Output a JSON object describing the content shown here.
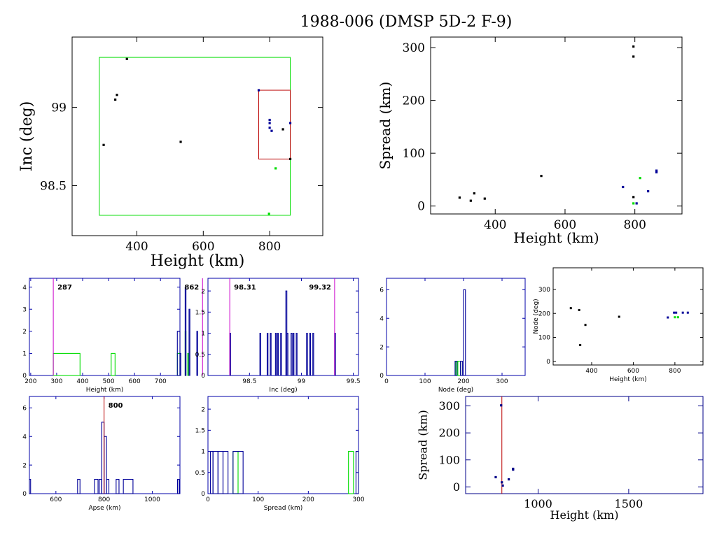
{
  "title": "1988-006 (DMSP 5D-2 F-9)",
  "colors": {
    "black": "#000000",
    "green": "#00dd00",
    "red": "#bb0000",
    "blue": "#000099",
    "magenta": "#cc00cc",
    "navy": "#000088"
  },
  "chart_data": [
    {
      "id": "inc-vs-height",
      "type": "scatter",
      "xlabel": "Height (km)",
      "ylabel": "Inc (deg)",
      "xlim": [
        205,
        960
      ],
      "ylim": [
        98.18,
        99.45
      ],
      "xticks": [
        400,
        600,
        800
      ],
      "yticks": [
        98.5,
        99
      ],
      "boxes": [
        {
          "color": "green",
          "x": [
            287,
            862
          ],
          "y": [
            98.31,
            99.32
          ]
        },
        {
          "color": "red",
          "x": [
            767,
            862
          ],
          "y": [
            98.67,
            99.11
          ]
        }
      ],
      "points": [
        {
          "x": 370,
          "y": 99.31,
          "color": "black"
        },
        {
          "x": 340,
          "y": 99.08,
          "color": "black"
        },
        {
          "x": 335,
          "y": 99.05,
          "color": "black"
        },
        {
          "x": 300,
          "y": 98.76,
          "color": "black"
        },
        {
          "x": 532,
          "y": 98.78,
          "color": "black"
        },
        {
          "x": 767,
          "y": 99.11,
          "color": "blue"
        },
        {
          "x": 800,
          "y": 98.92,
          "color": "blue"
        },
        {
          "x": 800,
          "y": 98.9,
          "color": "blue"
        },
        {
          "x": 800,
          "y": 98.87,
          "color": "blue"
        },
        {
          "x": 806,
          "y": 98.85,
          "color": "blue"
        },
        {
          "x": 840,
          "y": 98.86,
          "color": "black"
        },
        {
          "x": 862,
          "y": 98.9,
          "color": "blue"
        },
        {
          "x": 862,
          "y": 98.67,
          "color": "black"
        },
        {
          "x": 818,
          "y": 98.61,
          "color": "green"
        },
        {
          "x": 798,
          "y": 98.32,
          "color": "green"
        }
      ]
    },
    {
      "id": "spread-vs-height",
      "type": "scatter",
      "xlabel": "Height (km)",
      "ylabel": "Spread (km)",
      "xlim": [
        215,
        935
      ],
      "ylim": [
        -15,
        320
      ],
      "xticks": [
        400,
        600,
        800
      ],
      "yticks": [
        0,
        100,
        200,
        300
      ],
      "points": [
        {
          "x": 298,
          "y": 16,
          "color": "black"
        },
        {
          "x": 330,
          "y": 10,
          "color": "black"
        },
        {
          "x": 340,
          "y": 24,
          "color": "black"
        },
        {
          "x": 370,
          "y": 14,
          "color": "black"
        },
        {
          "x": 532,
          "y": 57,
          "color": "black"
        },
        {
          "x": 796,
          "y": 302,
          "color": "black"
        },
        {
          "x": 796,
          "y": 283,
          "color": "black"
        },
        {
          "x": 766,
          "y": 36,
          "color": "blue"
        },
        {
          "x": 796,
          "y": 17,
          "color": "black"
        },
        {
          "x": 796,
          "y": 5,
          "color": "green"
        },
        {
          "x": 805,
          "y": 5,
          "color": "blue"
        },
        {
          "x": 815,
          "y": 53,
          "color": "green"
        },
        {
          "x": 838,
          "y": 28,
          "color": "blue"
        },
        {
          "x": 862,
          "y": 64,
          "color": "blue"
        },
        {
          "x": 862,
          "y": 67,
          "color": "blue"
        }
      ]
    },
    {
      "id": "height-hist",
      "type": "histogram",
      "xlabel": "Height (km)",
      "xlim": [
        195,
        775
      ],
      "ylim": [
        0,
        4.4
      ],
      "xticks": [
        200,
        300,
        400,
        500,
        600,
        700
      ],
      "xticklabels": [
        "200",
        "300",
        "400",
        "500",
        "600",
        "700"
      ],
      "yticks": [
        0,
        1,
        2,
        3,
        4
      ],
      "markers": [
        {
          "x": 287,
          "label": "287"
        },
        {
          "x": 862,
          "label": "862"
        }
      ],
      "series": [
        {
          "color": "green",
          "bars": [
            [
              287,
              390,
              1
            ],
            [
              510,
              525,
              1
            ],
            [
              765,
              795,
              1
            ],
            [
              795,
              805,
              2
            ],
            [
              805,
              830,
              1
            ]
          ]
        },
        {
          "color": "blue",
          "bars": [
            [
              765,
              775,
              2
            ],
            [
              775,
              795,
              1
            ],
            [
              795,
              810,
              4
            ],
            [
              810,
              840,
              3
            ],
            [
              840,
              862,
              2
            ]
          ]
        }
      ]
    },
    {
      "id": "inc-hist",
      "type": "histogram",
      "xlabel": "Inc (deg)",
      "xlim": [
        98.1,
        99.55
      ],
      "ylim": [
        0,
        2.3
      ],
      "xticks": [
        98.5,
        99,
        99.5
      ],
      "xticklabels": [
        "98.5",
        "99",
        "99.5"
      ],
      "yticks": [
        0,
        0.5,
        1,
        1.5,
        2
      ],
      "markers": [
        {
          "x": 98.31,
          "label": "98.31"
        },
        {
          "x": 99.32,
          "label": "99.32"
        }
      ],
      "series": [
        {
          "color": "blue",
          "bars": [
            [
              98.31,
              98.315,
              1
            ],
            [
              98.6,
              98.605,
              1
            ],
            [
              98.67,
              98.675,
              1
            ],
            [
              98.7,
              98.705,
              1
            ],
            [
              98.75,
              98.755,
              1
            ],
            [
              98.77,
              98.775,
              1
            ],
            [
              98.8,
              98.805,
              1
            ],
            [
              98.85,
              98.86,
              2
            ],
            [
              98.86,
              98.87,
              1
            ],
            [
              98.9,
              98.91,
              1
            ],
            [
              98.92,
              98.925,
              1
            ],
            [
              98.95,
              98.955,
              1
            ],
            [
              99.05,
              99.055,
              1
            ],
            [
              99.08,
              99.085,
              1
            ],
            [
              99.11,
              99.115,
              1
            ],
            [
              99.32,
              99.325,
              1
            ]
          ]
        }
      ]
    },
    {
      "id": "node-hist",
      "type": "histogram",
      "xlabel": "Node (deg)",
      "xlim": [
        0,
        360
      ],
      "ylim": [
        0,
        6.8
      ],
      "xticks": [
        0,
        100,
        200,
        300
      ],
      "xticklabels": [
        "0",
        "100",
        "200",
        "300"
      ],
      "yticks": [
        0,
        2,
        4,
        6
      ],
      "markers": [],
      "series": [
        {
          "color": "green",
          "bars": [
            [
              180,
              185,
              1
            ],
            [
              185,
              192,
              1
            ]
          ]
        },
        {
          "color": "blue",
          "bars": [
            [
              178,
              183,
              1
            ],
            [
              192,
              197,
              1
            ],
            [
              200,
              205,
              6
            ]
          ]
        }
      ]
    },
    {
      "id": "node-vs-height",
      "type": "scatter",
      "xlabel": "Height (km)",
      "ylabel": "Node (deg)",
      "xlim": [
        215,
        935
      ],
      "ylim": [
        -15,
        390
      ],
      "xticks": [
        400,
        600,
        800
      ],
      "yticks": [
        0,
        100,
        200,
        300
      ],
      "points": [
        {
          "x": 300,
          "y": 222,
          "color": "black"
        },
        {
          "x": 340,
          "y": 214,
          "color": "black"
        },
        {
          "x": 370,
          "y": 152,
          "color": "black"
        },
        {
          "x": 345,
          "y": 68,
          "color": "black"
        },
        {
          "x": 532,
          "y": 186,
          "color": "black"
        },
        {
          "x": 766,
          "y": 183,
          "color": "blue"
        },
        {
          "x": 796,
          "y": 203,
          "color": "blue"
        },
        {
          "x": 806,
          "y": 203,
          "color": "blue"
        },
        {
          "x": 800,
          "y": 184,
          "color": "green"
        },
        {
          "x": 815,
          "y": 184,
          "color": "green"
        },
        {
          "x": 838,
          "y": 203,
          "color": "blue"
        },
        {
          "x": 862,
          "y": 203,
          "color": "blue"
        }
      ]
    },
    {
      "id": "apse-hist",
      "type": "histogram",
      "xlabel": "Apse (km)",
      "xlim": [
        490,
        1115
      ],
      "ylim": [
        0,
        6.8
      ],
      "xticks": [
        600,
        800,
        1000
      ],
      "xticklabels": [
        "600",
        "800",
        "1000"
      ],
      "yticks": [
        0,
        2,
        4,
        6
      ],
      "markers": [
        {
          "x": 800,
          "label": "800"
        }
      ],
      "series": [
        {
          "color": "blue",
          "bars": [
            [
              490,
              495,
              1
            ],
            [
              690,
              700,
              1
            ],
            [
              760,
              775,
              1
            ],
            [
              780,
              790,
              1
            ],
            [
              790,
              800,
              5
            ],
            [
              800,
              810,
              4
            ],
            [
              810,
              820,
              1
            ],
            [
              850,
              862,
              1
            ],
            [
              880,
              920,
              1
            ],
            [
              1105,
              1112,
              1
            ]
          ]
        }
      ]
    },
    {
      "id": "spread-hist",
      "type": "histogram",
      "xlabel": "Spread (km)",
      "xlim": [
        0,
        300
      ],
      "ylim": [
        0,
        2.3
      ],
      "xticks": [
        0,
        100,
        200,
        300
      ],
      "xticklabels": [
        "0",
        "100",
        "200",
        "300"
      ],
      "yticks": [
        0,
        0.5,
        1,
        1.5,
        2
      ],
      "markers": [],
      "series": [
        {
          "color": "green",
          "bars": [
            [
              50,
              60,
              1
            ],
            [
              280,
              290,
              1
            ]
          ]
        },
        {
          "color": "blue",
          "bars": [
            [
              5,
              10,
              1
            ],
            [
              10,
              20,
              1
            ],
            [
              20,
              30,
              1
            ],
            [
              30,
              40,
              1
            ],
            [
              50,
              70,
              1
            ],
            [
              295,
              300,
              1
            ]
          ]
        }
      ]
    },
    {
      "id": "spread-vs-height-wide",
      "type": "scatter",
      "xlabel": "Height (km)",
      "ylabel": "Spread (km)",
      "xlim": [
        600,
        1910
      ],
      "ylim": [
        -25,
        335
      ],
      "xticks": [
        1000,
        1500
      ],
      "yticks": [
        0,
        100,
        200,
        300
      ],
      "vline": {
        "x": 800,
        "color": "red"
      },
      "points": [
        {
          "x": 766,
          "y": 36,
          "color": "navy"
        },
        {
          "x": 796,
          "y": 302,
          "color": "navy"
        },
        {
          "x": 800,
          "y": 17,
          "color": "navy"
        },
        {
          "x": 805,
          "y": 5,
          "color": "navy"
        },
        {
          "x": 838,
          "y": 28,
          "color": "navy"
        },
        {
          "x": 862,
          "y": 64,
          "color": "navy"
        },
        {
          "x": 862,
          "y": 67,
          "color": "navy"
        }
      ]
    }
  ]
}
